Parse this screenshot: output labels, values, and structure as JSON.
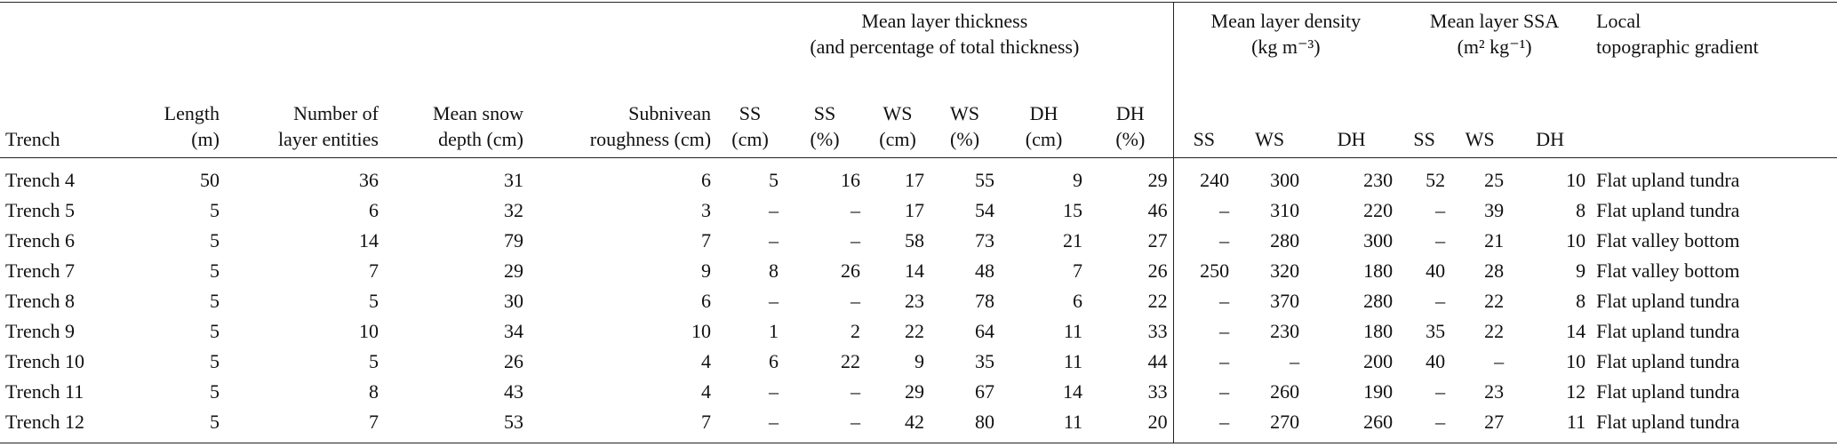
{
  "table": {
    "group_headers": [
      [
        "Mean layer thickness",
        "(and percentage of total thickness)"
      ],
      [
        "Mean layer density",
        "(kg m⁻³)"
      ],
      [
        "Mean layer SSA",
        "(m² kg⁻¹)"
      ],
      [
        "Local",
        "topographic gradient"
      ]
    ],
    "columns": [
      [
        "Trench"
      ],
      [
        "Length",
        "(m)"
      ],
      [
        "Number of",
        "layer entities"
      ],
      [
        "Mean snow",
        "depth (cm)"
      ],
      [
        "Subnivean",
        "roughness (cm)"
      ],
      [
        "SS",
        "(cm)"
      ],
      [
        "SS",
        "(%)"
      ],
      [
        "WS",
        "(cm)"
      ],
      [
        "WS",
        "(%)"
      ],
      [
        "DH",
        "(cm)"
      ],
      [
        "DH",
        "(%)"
      ],
      [
        "SS"
      ],
      [
        "WS"
      ],
      [
        "DH"
      ],
      [
        "SS"
      ],
      [
        "WS"
      ],
      [
        "DH"
      ]
    ],
    "rows": [
      [
        "Trench 4",
        50,
        36,
        31,
        6,
        5,
        16,
        17,
        55,
        9,
        29,
        240,
        300,
        230,
        52,
        25,
        10,
        "Flat upland tundra"
      ],
      [
        "Trench 5",
        5,
        6,
        32,
        3,
        "–",
        "–",
        17,
        54,
        15,
        46,
        "–",
        310,
        220,
        "–",
        39,
        8,
        "Flat upland tundra"
      ],
      [
        "Trench 6",
        5,
        14,
        79,
        7,
        "–",
        "–",
        58,
        73,
        21,
        27,
        "–",
        280,
        300,
        "–",
        21,
        10,
        "Flat valley bottom"
      ],
      [
        "Trench 7",
        5,
        7,
        29,
        9,
        8,
        26,
        14,
        48,
        7,
        26,
        250,
        320,
        180,
        40,
        28,
        9,
        "Flat valley bottom"
      ],
      [
        "Trench 8",
        5,
        5,
        30,
        6,
        "–",
        "–",
        23,
        78,
        6,
        22,
        "–",
        370,
        280,
        "–",
        22,
        8,
        "Flat upland tundra"
      ],
      [
        "Trench 9",
        5,
        10,
        34,
        10,
        1,
        2,
        22,
        64,
        11,
        33,
        "–",
        230,
        180,
        35,
        22,
        14,
        "Flat upland tundra"
      ],
      [
        "Trench 10",
        5,
        5,
        26,
        4,
        6,
        22,
        9,
        35,
        11,
        44,
        "–",
        "–",
        200,
        40,
        "–",
        10,
        "Flat upland tundra"
      ],
      [
        "Trench 11",
        5,
        8,
        43,
        4,
        "–",
        "–",
        29,
        67,
        14,
        33,
        "–",
        260,
        190,
        "–",
        23,
        12,
        "Flat upland tundra"
      ],
      [
        "Trench 12",
        5,
        7,
        53,
        7,
        "–",
        "–",
        42,
        80,
        11,
        20,
        "–",
        270,
        260,
        "–",
        27,
        11,
        "Flat upland tundra"
      ]
    ]
  }
}
